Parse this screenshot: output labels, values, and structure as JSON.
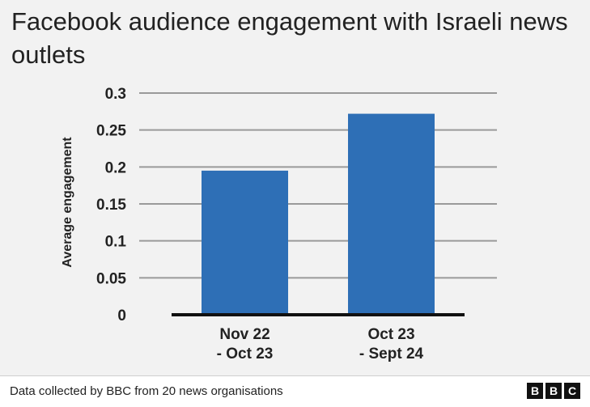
{
  "chart_data": {
    "type": "bar",
    "title": "Facebook audience engagement with Israeli news outlets",
    "categories": [
      [
        "Nov 22",
        "- Oct 23"
      ],
      [
        "Oct 23",
        "- Sept 24"
      ]
    ],
    "values": [
      0.195,
      0.272
    ],
    "ylabel": "Average engagement",
    "xlabel": "",
    "ylim": [
      0,
      0.3
    ],
    "yticks": [
      "0",
      "0.05",
      "0.1",
      "0.15",
      "0.2",
      "0.25",
      "0.3"
    ],
    "grid": true,
    "bar_color": "#2e6fb6"
  },
  "footer": {
    "source": "Data collected by BBC from 20 news organisations",
    "logo_letters": [
      "B",
      "B",
      "C"
    ]
  }
}
